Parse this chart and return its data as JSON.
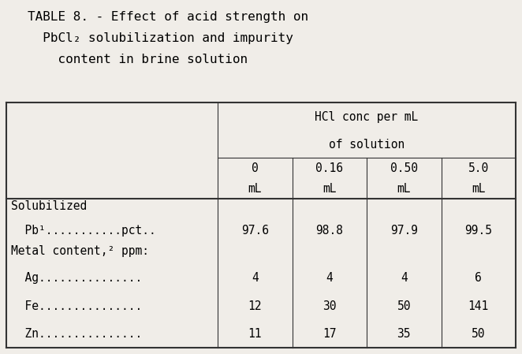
{
  "title_lines": [
    "TABLE 8. - Effect of acid strength on",
    "  PbCl₂ solubilization and impurity",
    "    content in brine solution"
  ],
  "header_span1": "HCl conc per mL",
  "header_span2": "of solution",
  "col_vals": [
    "0",
    "0.16",
    "0.50",
    "5.0"
  ],
  "col_unit": "mL",
  "row_label_lines": [
    [
      "Solubilized",
      "  Pb¹...........pct.."
    ],
    [
      "Metal content,² ppm:"
    ],
    [
      "  Ag..............."
    ],
    [
      "  Fe..............."
    ],
    [
      "  Zn..............."
    ]
  ],
  "pb_data": [
    "97.6",
    "98.8",
    "97.9",
    "99.5"
  ],
  "metal_data": [
    [
      "",
      "",
      "",
      ""
    ],
    [
      "4",
      "4",
      "4",
      "6"
    ],
    [
      "12",
      "30",
      "50",
      "141"
    ],
    [
      "11",
      "17",
      "35",
      "50"
    ]
  ],
  "bg_color": "#f0ede8",
  "text_color": "#000000",
  "line_color": "#333333",
  "font_size": 10.5,
  "title_font_size": 11.5
}
